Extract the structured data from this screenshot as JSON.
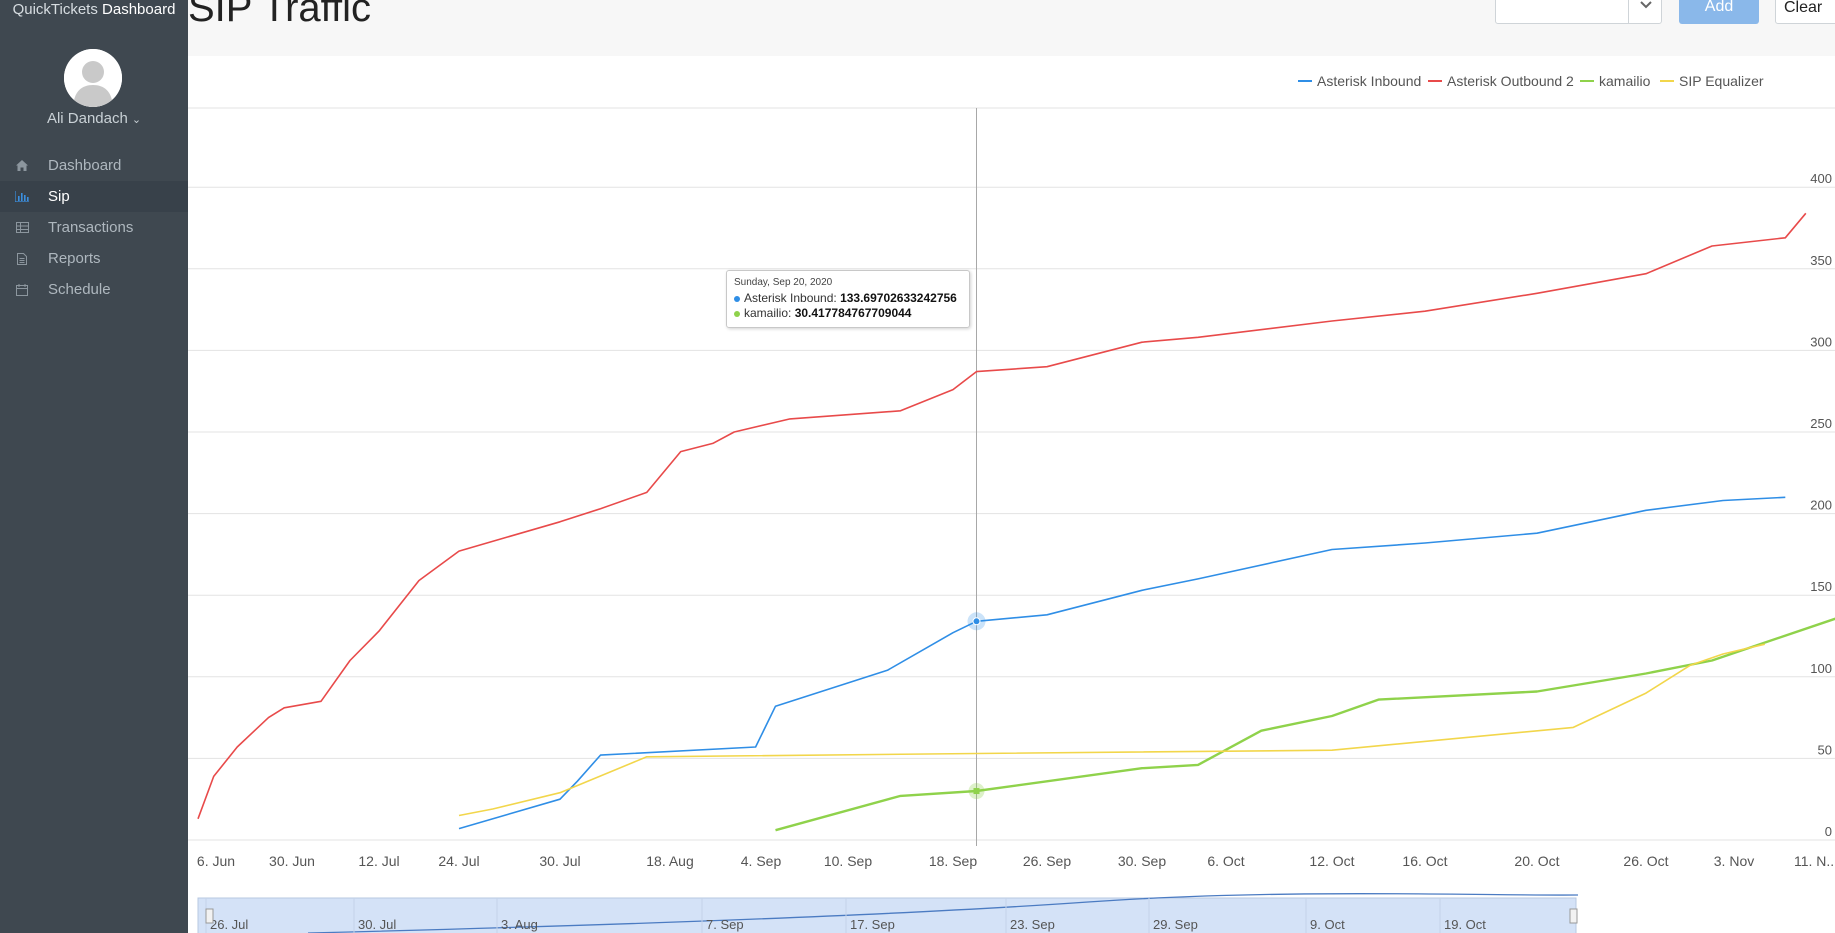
{
  "app": {
    "brand_light": "QuickTickets",
    "brand_strong": "Dashboard",
    "user_name": "Ali Dandach"
  },
  "sidebar": {
    "items": [
      {
        "label": "Dashboard",
        "icon": "home-icon",
        "active": false
      },
      {
        "label": "Sip",
        "icon": "bar-chart-icon",
        "active": true
      },
      {
        "label": "Transactions",
        "icon": "table-icon",
        "active": false
      },
      {
        "label": "Reports",
        "icon": "file-icon",
        "active": false
      },
      {
        "label": "Schedule",
        "icon": "calendar-icon",
        "active": false
      }
    ]
  },
  "header": {
    "title": "SIP Traffic",
    "add_label": "Add",
    "clear_label": "Clear",
    "select_value": ""
  },
  "colors": {
    "accent": "#8ab8ea",
    "sidebar_bg": "#3f4850",
    "active_icon": "#3b8fe0"
  },
  "tooltip": {
    "date": "Sunday, Sep 20, 2020",
    "rows": [
      {
        "series": "Asterisk Inbound",
        "value": "133.69702633242756",
        "color": "#2f8ee6"
      },
      {
        "series": "kamailio",
        "value": "30.417784767709044",
        "color": "#8fd24b"
      }
    ]
  },
  "chart_data": {
    "type": "line",
    "xlabel": "",
    "ylabel": "",
    "ylim": [
      0,
      450
    ],
    "xlim": [
      "2020-06-06",
      "2020-11-14"
    ],
    "legend_position": "top-right",
    "grid": true,
    "y_ticks": [
      0,
      50,
      100,
      150,
      200,
      250,
      300,
      350,
      400
    ],
    "x_tick_labels": [
      "6. Jun",
      "30. Jun",
      "12. Jul",
      "24. Jul",
      "30. Jul",
      "18. Aug",
      "4. Sep",
      "10. Sep",
      "18. Sep",
      "26. Sep",
      "30. Sep",
      "6. Oct",
      "12. Oct",
      "16. Oct",
      "20. Oct",
      "26. Oct",
      "3. Nov",
      "11. N..."
    ],
    "crosshair_x": "2020-09-20",
    "series": [
      {
        "name": "Asterisk Inbound",
        "color": "#2f8ee6",
        "points": [
          [
            "2020-07-24",
            7
          ],
          [
            "2020-07-30",
            25
          ],
          [
            "2020-08-02",
            36
          ],
          [
            "2020-08-06",
            52
          ],
          [
            "2020-09-03",
            57
          ],
          [
            "2020-09-05",
            82
          ],
          [
            "2020-09-13",
            104
          ],
          [
            "2020-09-18",
            127
          ],
          [
            "2020-09-20",
            134
          ],
          [
            "2020-09-26",
            138
          ],
          [
            "2020-09-30",
            153
          ],
          [
            "2020-10-04",
            160
          ],
          [
            "2020-10-12",
            178
          ],
          [
            "2020-10-16",
            182
          ],
          [
            "2020-10-20",
            188
          ],
          [
            "2020-10-26",
            202
          ],
          [
            "2020-11-02",
            208
          ],
          [
            "2020-11-08",
            210
          ]
        ]
      },
      {
        "name": "Asterisk Outbound 2",
        "color": "#e84a4a",
        "points": [
          [
            "2020-06-06",
            13
          ],
          [
            "2020-06-10",
            39
          ],
          [
            "2020-06-16",
            57
          ],
          [
            "2020-06-20",
            66
          ],
          [
            "2020-06-24",
            75
          ],
          [
            "2020-06-28",
            81
          ],
          [
            "2020-07-04",
            85
          ],
          [
            "2020-07-08",
            110
          ],
          [
            "2020-07-12",
            128
          ],
          [
            "2020-07-18",
            159
          ],
          [
            "2020-07-24",
            177
          ],
          [
            "2020-07-30",
            195
          ],
          [
            "2020-08-06",
            203
          ],
          [
            "2020-08-14",
            213
          ],
          [
            "2020-08-20",
            238
          ],
          [
            "2020-08-26",
            243
          ],
          [
            "2020-08-30",
            250
          ],
          [
            "2020-09-06",
            258
          ],
          [
            "2020-09-14",
            263
          ],
          [
            "2020-09-18",
            276
          ],
          [
            "2020-09-20",
            287
          ],
          [
            "2020-09-26",
            290
          ],
          [
            "2020-09-30",
            305
          ],
          [
            "2020-10-04",
            308
          ],
          [
            "2020-10-12",
            318
          ],
          [
            "2020-10-16",
            324
          ],
          [
            "2020-10-20",
            335
          ],
          [
            "2020-10-26",
            347
          ],
          [
            "2020-11-01",
            364
          ],
          [
            "2020-11-08",
            369
          ],
          [
            "2020-11-10",
            384
          ]
        ]
      },
      {
        "name": "kamailio",
        "color": "#8fd24b",
        "points": [
          [
            "2020-09-05",
            6
          ],
          [
            "2020-09-14",
            27
          ],
          [
            "2020-09-20",
            30
          ],
          [
            "2020-09-30",
            44
          ],
          [
            "2020-10-04",
            46
          ],
          [
            "2020-10-08",
            67
          ],
          [
            "2020-10-12",
            76
          ],
          [
            "2020-10-14",
            86
          ],
          [
            "2020-10-20",
            91
          ],
          [
            "2020-10-26",
            102
          ],
          [
            "2020-11-01",
            110
          ],
          [
            "2020-11-14",
            138
          ]
        ]
      },
      {
        "name": "SIP Equalizer",
        "color": "#f2d64b",
        "points": [
          [
            "2020-07-24",
            15
          ],
          [
            "2020-07-26",
            19
          ],
          [
            "2020-07-30",
            29
          ],
          [
            "2020-08-14",
            51
          ],
          [
            "2020-09-20",
            53
          ],
          [
            "2020-10-12",
            55
          ],
          [
            "2020-10-22",
            69
          ],
          [
            "2020-10-26",
            90
          ],
          [
            "2020-10-30",
            107
          ],
          [
            "2020-11-02",
            114
          ],
          [
            "2020-11-06",
            120
          ]
        ]
      }
    ],
    "navigator": {
      "labels": [
        "26. Jul",
        "30. Jul",
        "3. Aug",
        "7. Sep",
        "17. Sep",
        "23. Sep",
        "29. Sep",
        "9. Oct",
        "19. Oct"
      ]
    }
  }
}
